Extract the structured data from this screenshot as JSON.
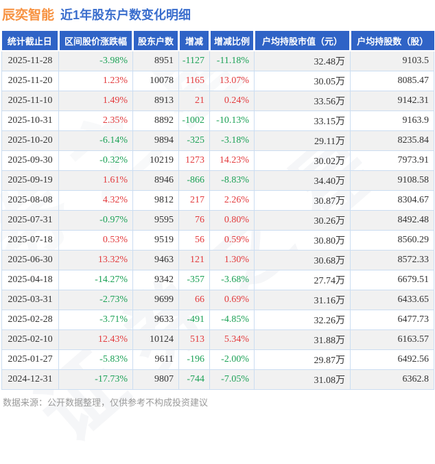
{
  "title": {
    "brand": "辰奕智能",
    "subtitle": "近1年股东户数变化明细"
  },
  "colors": {
    "header_bg": "#2f63c6",
    "up_red": "#e33a3c",
    "down_green": "#1ba155",
    "brand_orange": "#f79241",
    "title_blue": "#3a6ecd",
    "alt_row_bg": "#f0f0f0",
    "cell_border": "#cbddf1"
  },
  "chart_data": {
    "type": "table",
    "title": "辰奕智能 近1年股东户数变化明细",
    "columns": [
      "统计截止日",
      "区间股价涨跌幅",
      "股东户数",
      "增减",
      "增减比例",
      "户均持股市值（元）",
      "户均持股数（股）"
    ],
    "rows": [
      {
        "cells": [
          "2025-11-28",
          "-3.98%",
          "8951",
          "-1127",
          "-11.18%",
          "32.48万",
          "9103.5"
        ],
        "colors": [
          "",
          "green",
          "",
          "green",
          "green",
          "",
          ""
        ]
      },
      {
        "cells": [
          "2025-11-20",
          "1.23%",
          "10078",
          "1165",
          "13.07%",
          "30.05万",
          "8085.47"
        ],
        "colors": [
          "",
          "red",
          "",
          "red",
          "red",
          "",
          ""
        ]
      },
      {
        "cells": [
          "2025-11-10",
          "1.49%",
          "8913",
          "21",
          "0.24%",
          "33.56万",
          "9142.31"
        ],
        "colors": [
          "",
          "red",
          "",
          "red",
          "red",
          "",
          ""
        ]
      },
      {
        "cells": [
          "2025-10-31",
          "2.35%",
          "8892",
          "-1002",
          "-10.13%",
          "33.15万",
          "9163.9"
        ],
        "colors": [
          "",
          "red",
          "",
          "green",
          "green",
          "",
          ""
        ]
      },
      {
        "cells": [
          "2025-10-20",
          "-6.14%",
          "9894",
          "-325",
          "-3.18%",
          "29.11万",
          "8235.84"
        ],
        "colors": [
          "",
          "green",
          "",
          "green",
          "green",
          "",
          ""
        ]
      },
      {
        "cells": [
          "2025-09-30",
          "-0.32%",
          "10219",
          "1273",
          "14.23%",
          "30.02万",
          "7973.91"
        ],
        "colors": [
          "",
          "green",
          "",
          "red",
          "red",
          "",
          ""
        ]
      },
      {
        "cells": [
          "2025-09-19",
          "1.61%",
          "8946",
          "-866",
          "-8.83%",
          "34.40万",
          "9108.58"
        ],
        "colors": [
          "",
          "red",
          "",
          "green",
          "green",
          "",
          ""
        ]
      },
      {
        "cells": [
          "2025-08-08",
          "4.32%",
          "9812",
          "217",
          "2.26%",
          "30.87万",
          "8304.67"
        ],
        "colors": [
          "",
          "red",
          "",
          "red",
          "red",
          "",
          ""
        ]
      },
      {
        "cells": [
          "2025-07-31",
          "-0.97%",
          "9595",
          "76",
          "0.80%",
          "30.26万",
          "8492.48"
        ],
        "colors": [
          "",
          "green",
          "",
          "red",
          "red",
          "",
          ""
        ]
      },
      {
        "cells": [
          "2025-07-18",
          "0.53%",
          "9519",
          "56",
          "0.59%",
          "30.80万",
          "8560.29"
        ],
        "colors": [
          "",
          "red",
          "",
          "red",
          "red",
          "",
          ""
        ]
      },
      {
        "cells": [
          "2025-06-30",
          "13.32%",
          "9463",
          "121",
          "1.30%",
          "30.68万",
          "8572.33"
        ],
        "colors": [
          "",
          "red",
          "",
          "red",
          "red",
          "",
          ""
        ]
      },
      {
        "cells": [
          "2025-04-18",
          "-14.27%",
          "9342",
          "-357",
          "-3.68%",
          "27.74万",
          "6679.51"
        ],
        "colors": [
          "",
          "green",
          "",
          "green",
          "green",
          "",
          ""
        ]
      },
      {
        "cells": [
          "2025-03-31",
          "-2.73%",
          "9699",
          "66",
          "0.69%",
          "31.16万",
          "6433.65"
        ],
        "colors": [
          "",
          "green",
          "",
          "red",
          "red",
          "",
          ""
        ]
      },
      {
        "cells": [
          "2025-02-28",
          "-3.71%",
          "9633",
          "-491",
          "-4.85%",
          "32.26万",
          "6477.73"
        ],
        "colors": [
          "",
          "green",
          "",
          "green",
          "green",
          "",
          ""
        ]
      },
      {
        "cells": [
          "2025-02-10",
          "12.43%",
          "10124",
          "513",
          "5.34%",
          "31.88万",
          "6163.57"
        ],
        "colors": [
          "",
          "red",
          "",
          "red",
          "red",
          "",
          ""
        ]
      },
      {
        "cells": [
          "2025-01-27",
          "-5.83%",
          "9611",
          "-196",
          "-2.00%",
          "29.87万",
          "6492.56"
        ],
        "colors": [
          "",
          "green",
          "",
          "green",
          "green",
          "",
          ""
        ]
      },
      {
        "cells": [
          "2024-12-31",
          "-17.73%",
          "9807",
          "-744",
          "-7.05%",
          "31.08万",
          "6362.8"
        ],
        "colors": [
          "",
          "green",
          "",
          "green",
          "green",
          "",
          ""
        ]
      }
    ]
  },
  "footer": {
    "source_note": "数据来源：公开数据整理，仅供参考不构成投资建议"
  },
  "watermark": {
    "text": "证券之星"
  }
}
